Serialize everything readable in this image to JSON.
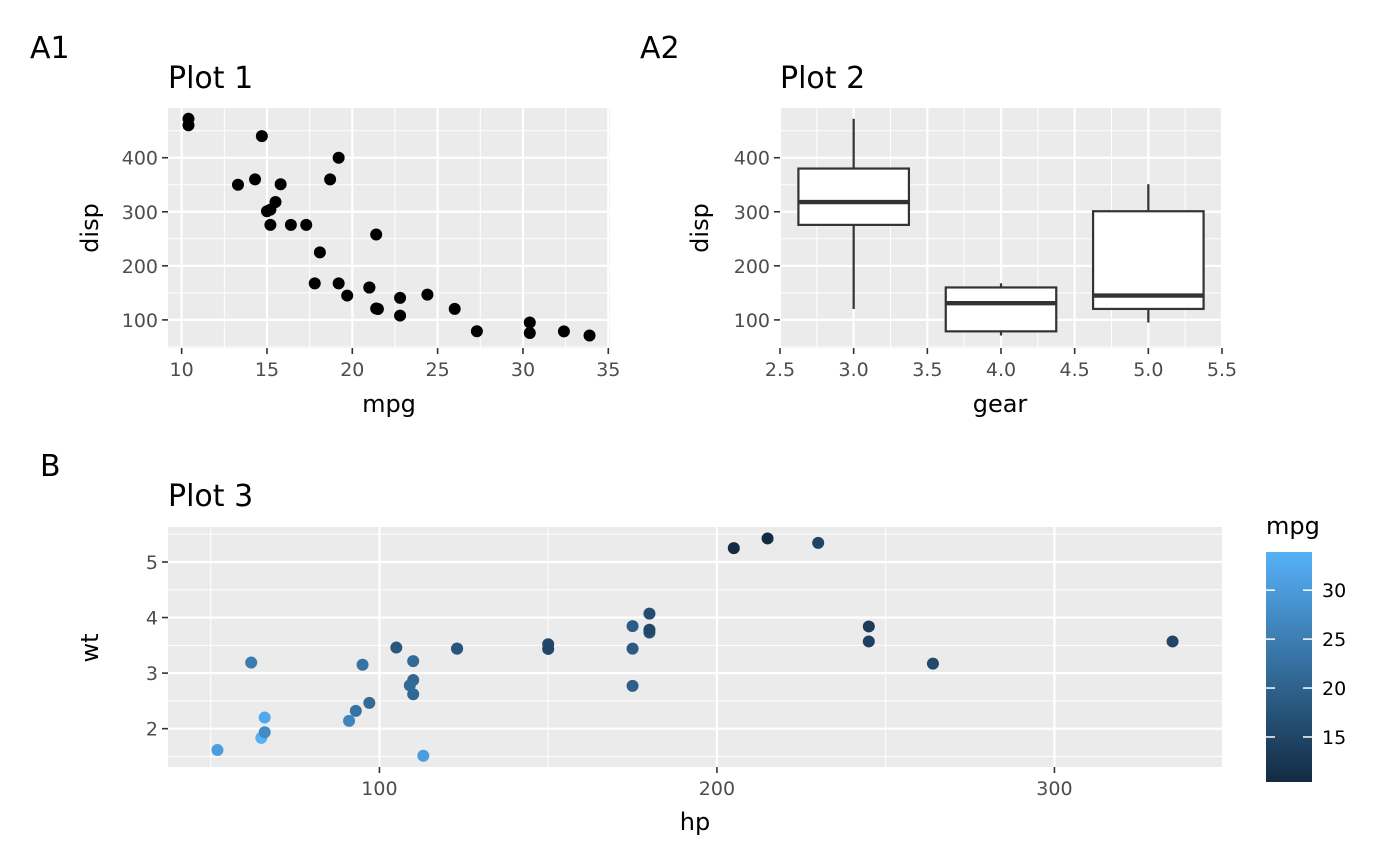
{
  "chart_data": [
    {
      "type": "scatter",
      "tag": "A1",
      "title": "Plot 1",
      "xlabel": "mpg",
      "ylabel": "disp",
      "xlim": [
        9.2,
        35.1
      ],
      "ylim": [
        48,
        492
      ],
      "xticks": [
        10,
        15,
        20,
        25,
        30,
        35
      ],
      "yticks": [
        100,
        200,
        300,
        400
      ],
      "point_color": "#000000",
      "points": [
        {
          "x": 21.0,
          "y": 160
        },
        {
          "x": 21.0,
          "y": 160
        },
        {
          "x": 22.8,
          "y": 108
        },
        {
          "x": 21.4,
          "y": 258
        },
        {
          "x": 18.7,
          "y": 360
        },
        {
          "x": 18.1,
          "y": 225
        },
        {
          "x": 14.3,
          "y": 360
        },
        {
          "x": 24.4,
          "y": 146.7
        },
        {
          "x": 22.8,
          "y": 140.8
        },
        {
          "x": 19.2,
          "y": 167.6
        },
        {
          "x": 17.8,
          "y": 167.6
        },
        {
          "x": 16.4,
          "y": 275.8
        },
        {
          "x": 17.3,
          "y": 275.8
        },
        {
          "x": 15.2,
          "y": 275.8
        },
        {
          "x": 10.4,
          "y": 472
        },
        {
          "x": 10.4,
          "y": 460
        },
        {
          "x": 14.7,
          "y": 440
        },
        {
          "x": 32.4,
          "y": 78.7
        },
        {
          "x": 30.4,
          "y": 75.7
        },
        {
          "x": 33.9,
          "y": 71.1
        },
        {
          "x": 21.5,
          "y": 120.1
        },
        {
          "x": 15.5,
          "y": 318
        },
        {
          "x": 15.2,
          "y": 304
        },
        {
          "x": 13.3,
          "y": 350
        },
        {
          "x": 19.2,
          "y": 400
        },
        {
          "x": 27.3,
          "y": 79
        },
        {
          "x": 26.0,
          "y": 120.3
        },
        {
          "x": 30.4,
          "y": 95.1
        },
        {
          "x": 15.8,
          "y": 351
        },
        {
          "x": 19.7,
          "y": 145
        },
        {
          "x": 15.0,
          "y": 301
        },
        {
          "x": 21.4,
          "y": 121
        }
      ]
    },
    {
      "type": "box",
      "tag": "A2",
      "title": "Plot 2",
      "xlabel": "gear",
      "ylabel": "disp",
      "xlim": [
        2.5,
        5.5
      ],
      "ylim": [
        48,
        492
      ],
      "xticks": [
        "2.5",
        "3.0",
        "3.5",
        "4.0",
        "4.5",
        "5.0",
        "5.5"
      ],
      "yticks": [
        100,
        200,
        300,
        400
      ],
      "boxes": [
        {
          "x": 3,
          "min": 120.1,
          "q1": 275.8,
          "median": 318,
          "q3": 380,
          "max": 472
        },
        {
          "x": 4,
          "min": 71.1,
          "q1": 78.8,
          "median": 130.9,
          "q3": 160,
          "max": 167.6
        },
        {
          "x": 5,
          "min": 95.1,
          "q1": 120.3,
          "median": 145,
          "q3": 301,
          "max": 351
        }
      ]
    },
    {
      "type": "scatter",
      "tag": "B",
      "title": "Plot 3",
      "xlabel": "hp",
      "ylabel": "wt",
      "xlim": [
        37.35,
        349.65
      ],
      "ylim": [
        1.31,
        5.63
      ],
      "xticks": [
        100,
        200,
        300
      ],
      "yticks": [
        2,
        3,
        4,
        5
      ],
      "legend": {
        "title": "mpg",
        "ticks": [
          15,
          20,
          25,
          30
        ],
        "range": [
          10.4,
          33.9
        ],
        "low_color": "#132B43",
        "high_color": "#56B1F7",
        "position": "right"
      },
      "points": [
        {
          "hp": 110,
          "wt": 2.62,
          "mpg": 21.0
        },
        {
          "hp": 110,
          "wt": 2.875,
          "mpg": 21.0
        },
        {
          "hp": 93,
          "wt": 2.32,
          "mpg": 22.8
        },
        {
          "hp": 110,
          "wt": 3.215,
          "mpg": 21.4
        },
        {
          "hp": 175,
          "wt": 3.44,
          "mpg": 18.7
        },
        {
          "hp": 105,
          "wt": 3.46,
          "mpg": 18.1
        },
        {
          "hp": 245,
          "wt": 3.57,
          "mpg": 14.3
        },
        {
          "hp": 62,
          "wt": 3.19,
          "mpg": 24.4
        },
        {
          "hp": 95,
          "wt": 3.15,
          "mpg": 22.8
        },
        {
          "hp": 123,
          "wt": 3.44,
          "mpg": 19.2
        },
        {
          "hp": 123,
          "wt": 3.44,
          "mpg": 17.8
        },
        {
          "hp": 180,
          "wt": 4.07,
          "mpg": 16.4
        },
        {
          "hp": 180,
          "wt": 3.73,
          "mpg": 17.3
        },
        {
          "hp": 180,
          "wt": 3.78,
          "mpg": 15.2
        },
        {
          "hp": 205,
          "wt": 5.25,
          "mpg": 10.4
        },
        {
          "hp": 215,
          "wt": 5.424,
          "mpg": 10.4
        },
        {
          "hp": 230,
          "wt": 5.345,
          "mpg": 14.7
        },
        {
          "hp": 66,
          "wt": 2.2,
          "mpg": 32.4
        },
        {
          "hp": 52,
          "wt": 1.615,
          "mpg": 30.4
        },
        {
          "hp": 65,
          "wt": 1.835,
          "mpg": 33.9
        },
        {
          "hp": 97,
          "wt": 2.465,
          "mpg": 21.5
        },
        {
          "hp": 150,
          "wt": 3.52,
          "mpg": 15.5
        },
        {
          "hp": 150,
          "wt": 3.435,
          "mpg": 15.2
        },
        {
          "hp": 245,
          "wt": 3.84,
          "mpg": 13.3
        },
        {
          "hp": 175,
          "wt": 3.845,
          "mpg": 19.2
        },
        {
          "hp": 66,
          "wt": 1.935,
          "mpg": 27.3
        },
        {
          "hp": 91,
          "wt": 2.14,
          "mpg": 26.0
        },
        {
          "hp": 113,
          "wt": 1.513,
          "mpg": 30.4
        },
        {
          "hp": 264,
          "wt": 3.17,
          "mpg": 15.8
        },
        {
          "hp": 175,
          "wt": 2.77,
          "mpg": 19.7
        },
        {
          "hp": 335,
          "wt": 3.57,
          "mpg": 15.0
        },
        {
          "hp": 109,
          "wt": 2.78,
          "mpg": 21.4
        }
      ]
    }
  ]
}
